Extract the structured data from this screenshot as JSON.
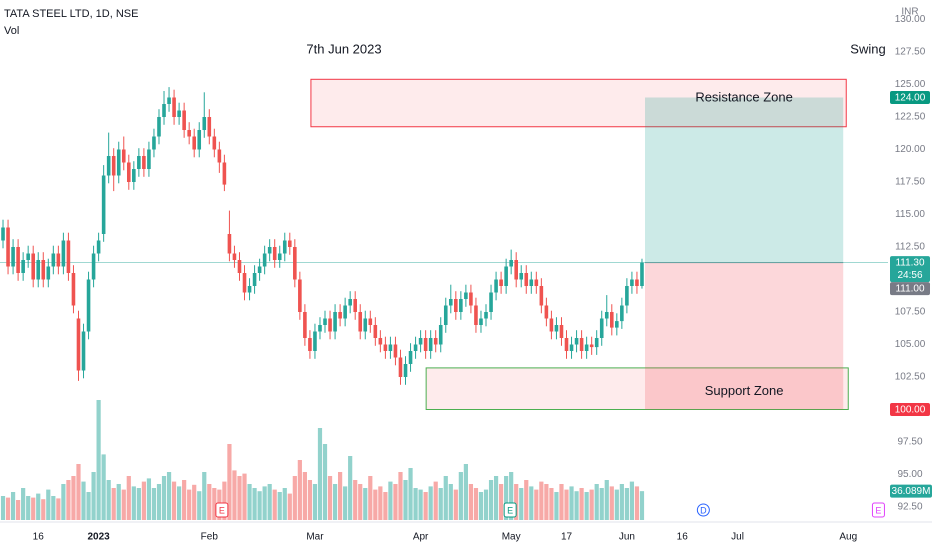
{
  "chart_data": {
    "type": "candlestick",
    "title": "TATA STEEL LTD, 1D, NSE",
    "subtitle": "Vol",
    "date_note": "7th Jun 2023",
    "strategy_note": "Swing",
    "currency": "INR",
    "xlim": [
      -0.6,
      175.9
    ],
    "ylim": [
      91.5,
      131.5
    ],
    "grid": false,
    "up_color": "#26a69a",
    "down_color": "#ef5350",
    "yticks": [
      {
        "value": 92.5,
        "label": "92.50"
      },
      {
        "value": 95,
        "label": "95.00"
      },
      {
        "value": 97.5,
        "label": "97.50"
      },
      {
        "value": 100,
        "label": "100.00"
      },
      {
        "value": 102.5,
        "label": "102.50"
      },
      {
        "value": 105,
        "label": "105.00"
      },
      {
        "value": 107.5,
        "label": "107.50"
      },
      {
        "value": 110,
        "label": "110.00"
      },
      {
        "value": 112.5,
        "label": "112.50"
      },
      {
        "value": 115,
        "label": "115.00"
      },
      {
        "value": 117.5,
        "label": "117.50"
      },
      {
        "value": 120,
        "label": "120.00"
      },
      {
        "value": 122.5,
        "label": "122.50"
      },
      {
        "value": 125,
        "label": "125.00"
      },
      {
        "value": 127.5,
        "label": "127.50"
      },
      {
        "value": 130,
        "label": "130.00"
      }
    ],
    "xticks": [
      {
        "value": 7,
        "label": "16"
      },
      {
        "value": 19,
        "label": "2023"
      },
      {
        "value": 41,
        "label": "Feb"
      },
      {
        "value": 62,
        "label": "Mar"
      },
      {
        "value": 83,
        "label": "Apr"
      },
      {
        "value": 101,
        "label": "May"
      },
      {
        "value": 112,
        "label": "17"
      },
      {
        "value": 124,
        "label": "Jun"
      },
      {
        "value": 135,
        "label": "16"
      },
      {
        "value": 146,
        "label": "Jul"
      },
      {
        "value": 168,
        "label": "Aug"
      }
    ],
    "open": [
      113,
      114,
      111,
      112.5,
      110.5,
      111.5,
      112,
      110,
      111.5,
      110,
      111,
      112,
      111,
      113,
      110.5,
      107,
      103,
      106,
      110,
      112,
      113.5,
      118,
      119.5,
      118,
      120,
      119,
      117.5,
      118.5,
      119.5,
      118.5,
      120,
      121,
      122.5,
      123.5,
      124,
      122.5,
      123,
      121.5,
      121,
      120,
      121.5,
      122.5,
      121,
      120,
      119,
      113.5,
      112,
      111.5,
      110.5,
      109,
      109.5,
      110.5,
      111,
      112,
      112.5,
      111.5,
      112,
      113,
      112.5,
      110,
      107.5,
      105.5,
      104.5,
      106,
      106.5,
      107,
      106,
      107.5,
      107,
      108,
      108.5,
      107.5,
      106,
      107,
      106.5,
      105.5,
      105,
      104.5,
      105,
      104,
      102.5,
      103.5,
      104.5,
      105,
      105.5,
      104.5,
      105.5,
      105,
      106.5,
      108,
      108.5,
      107.5,
      108.5,
      109,
      108,
      106.5,
      107,
      107.5,
      109,
      110,
      109.5,
      111,
      111.5,
      110,
      110.5,
      109.5,
      110,
      109.5,
      108,
      107,
      106,
      106.5,
      105.5,
      104.5,
      105,
      105.5,
      104.5,
      105,
      104.8,
      105.5,
      107,
      107.5,
      106.3,
      106.8,
      108,
      109.5,
      110,
      109.5
    ],
    "high": [
      114.6,
      114.6,
      113.1,
      113.1,
      112.1,
      112.6,
      112.6,
      112.1,
      112.1,
      111.6,
      112.6,
      112.6,
      113.6,
      113.6,
      111.1,
      107.6,
      106.6,
      110.6,
      112.6,
      113.6,
      118.8,
      121.3,
      120.1,
      120.6,
      121,
      119.6,
      119.1,
      120.1,
      120.1,
      120.6,
      121.6,
      123.1,
      124.5,
      124.8,
      124.6,
      123.6,
      123.6,
      122.1,
      121.6,
      122.1,
      124.4,
      123.1,
      121.6,
      120.6,
      119.6,
      115.3,
      112.6,
      112.1,
      111.1,
      110.1,
      111.1,
      111.6,
      112.6,
      113.1,
      113.1,
      112.6,
      113.6,
      113.6,
      113.1,
      110.6,
      108.1,
      106.1,
      106.6,
      107.1,
      107.6,
      107.6,
      108.1,
      108.1,
      108.6,
      109.1,
      109.1,
      108.1,
      107.6,
      107.6,
      107.1,
      106.1,
      105.6,
      105.6,
      105.6,
      104.6,
      104.1,
      105.1,
      105.6,
      106.1,
      106.1,
      106.1,
      106.1,
      107.1,
      108.6,
      109.6,
      109.1,
      109.1,
      109.6,
      109.6,
      108.6,
      107.6,
      108.1,
      109.6,
      110.6,
      110.6,
      111.6,
      112.3,
      112.1,
      111.1,
      111.1,
      110.6,
      110.6,
      110.1,
      108.6,
      107.6,
      107.1,
      107.1,
      106.1,
      105.6,
      106.1,
      106.1,
      105.6,
      105.6,
      106.1,
      107.6,
      108.8,
      108.1,
      107.4,
      108.6,
      110.1,
      110.6,
      110.6,
      111.6
    ],
    "low": [
      112.4,
      110.4,
      110.4,
      109.9,
      109.9,
      110.9,
      109.4,
      109.4,
      109.4,
      109.4,
      110.4,
      110.4,
      110.4,
      109.9,
      107.4,
      102.2,
      102.4,
      105.4,
      109.4,
      111.4,
      112.9,
      117.4,
      116.8,
      117.4,
      118.4,
      116.9,
      116.9,
      117.9,
      117.9,
      117.9,
      119.4,
      120.4,
      121.9,
      122.9,
      121.9,
      121.9,
      120.9,
      120.4,
      119.4,
      119.4,
      120.9,
      120.4,
      119.4,
      118.2,
      116.8,
      111.4,
      110.9,
      109.9,
      108.4,
      108.4,
      108.9,
      109.9,
      110.4,
      111.4,
      110.9,
      110.9,
      111.4,
      111.9,
      109.4,
      106.9,
      104.9,
      103.9,
      103.9,
      105.4,
      105.9,
      105.4,
      105.4,
      106.4,
      106.4,
      107.4,
      106.9,
      105.4,
      105.4,
      105.9,
      104.9,
      104.4,
      103.9,
      103.9,
      103.4,
      101.9,
      101.9,
      102.9,
      103.9,
      104.4,
      103.9,
      103.9,
      104.4,
      104.4,
      105.9,
      107.4,
      106.9,
      106.9,
      107.9,
      107.4,
      105.9,
      105.9,
      106.4,
      106.9,
      108.4,
      108.9,
      108.9,
      110.4,
      109.4,
      109.4,
      108.9,
      108.9,
      108.9,
      107.4,
      106.4,
      105.4,
      105.4,
      104.9,
      103.9,
      103.9,
      104.4,
      103.9,
      103.9,
      104.2,
      104.2,
      104.9,
      106.4,
      105.7,
      105.7,
      106.2,
      107.4,
      108.9,
      108.9,
      109.3
    ],
    "close": [
      114,
      111,
      112.5,
      110.5,
      111.5,
      112,
      110,
      111.5,
      110,
      111,
      112,
      111,
      113,
      110.5,
      108,
      103,
      106,
      110,
      112,
      113,
      118,
      119.5,
      118,
      120,
      119,
      117.5,
      118.5,
      119.5,
      118.5,
      120,
      121,
      122.5,
      123.5,
      124,
      122.5,
      123,
      121.5,
      121,
      120,
      121.5,
      122.5,
      121,
      120,
      119,
      117.3,
      112,
      111.5,
      110.5,
      109,
      109.5,
      110.5,
      111,
      112,
      112.5,
      111.5,
      112,
      113,
      112.5,
      110,
      107.5,
      105.5,
      104.5,
      106,
      106.5,
      107,
      106,
      107.5,
      107,
      108,
      108.5,
      107.5,
      106,
      107,
      106.5,
      105.5,
      105,
      104.5,
      105,
      104,
      102.5,
      103.5,
      104.5,
      105,
      105.5,
      104.5,
      105.5,
      105,
      106.5,
      108,
      108.5,
      107.5,
      108.5,
      109,
      108,
      106.5,
      107,
      107.5,
      109,
      110,
      109.5,
      111,
      111.5,
      110,
      110.5,
      109.5,
      110,
      109.5,
      108,
      107,
      106,
      106.5,
      105.5,
      104.5,
      105,
      105.5,
      104.5,
      105,
      104.8,
      105.5,
      107,
      107.5,
      106.3,
      106.8,
      108,
      109.5,
      110,
      109.5,
      111.3
    ],
    "volume": [
      30,
      28,
      35,
      25,
      40,
      30,
      28,
      33,
      26,
      38,
      30,
      27,
      45,
      50,
      55,
      70,
      48,
      35,
      60,
      150,
      82,
      50,
      40,
      45,
      38,
      55,
      42,
      40,
      48,
      52,
      40,
      45,
      55,
      60,
      48,
      42,
      50,
      38,
      44,
      36,
      60,
      45,
      40,
      38,
      48,
      95,
      62,
      55,
      58,
      45,
      40,
      36,
      42,
      45,
      38,
      35,
      40,
      33,
      55,
      75,
      60,
      50,
      45,
      115,
      95,
      55,
      45,
      60,
      42,
      80,
      50,
      45,
      40,
      55,
      38,
      42,
      35,
      48,
      45,
      60,
      50,
      65,
      40,
      38,
      35,
      42,
      48,
      40,
      55,
      45,
      38,
      60,
      70,
      45,
      40,
      35,
      38,
      50,
      55,
      45,
      55,
      60,
      45,
      40,
      50,
      42,
      38,
      48,
      45,
      40,
      35,
      45,
      38,
      42,
      36,
      40,
      35,
      38,
      45,
      40,
      50,
      42,
      38,
      45,
      40,
      48,
      42,
      36.089
    ],
    "volume_label": {
      "value": 36.089,
      "label": "36.089M"
    },
    "zones": [
      {
        "label": "Resistance Zone",
        "top": 125.4,
        "bottom": 121.75,
        "start": 61.2,
        "end": 167.6,
        "border": "#f23645",
        "fill": "#f23645"
      },
      {
        "label": "Support Zone",
        "top": 103.2,
        "bottom": 100,
        "start": 84.1,
        "end": 168,
        "border": "#4caf50",
        "fill": "#f23645"
      }
    ],
    "position": {
      "entry": 111.3,
      "target": 124,
      "stop": 100,
      "start": 127.6,
      "end": 167,
      "profit_color": "#009688",
      "loss_color": "#f23645"
    },
    "price_markers": [
      {
        "value": 124,
        "label": "124.00",
        "color": "#089981"
      },
      {
        "value": 111.3,
        "label": "111.30",
        "sub": "24:56",
        "color": "#26a69a"
      },
      {
        "value": 111,
        "label": "111.00",
        "color": "#787b86"
      },
      {
        "value": 100,
        "label": "100.00",
        "color": "#f23645"
      }
    ],
    "events": [
      {
        "label": "E",
        "x": 43.5,
        "color": "#f23645"
      },
      {
        "label": "E",
        "x": 100.8,
        "color": "#089981"
      },
      {
        "label": "D",
        "x": 139.2,
        "color": "#2962ff"
      },
      {
        "label": "E",
        "x": 174,
        "color": "#e040fb"
      }
    ]
  }
}
